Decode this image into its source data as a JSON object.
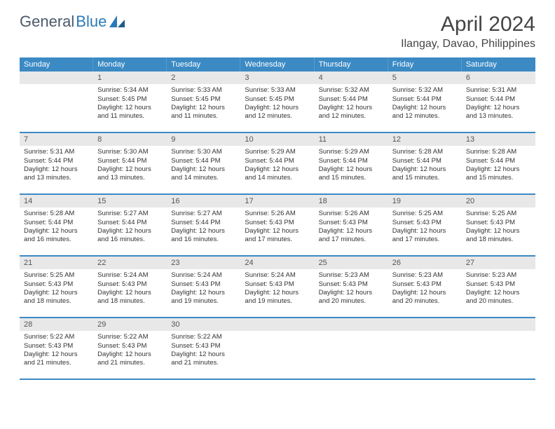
{
  "brand": {
    "name1": "General",
    "name2": "Blue"
  },
  "title": "April 2024",
  "location": "Ilangay, Davao, Philippines",
  "colors": {
    "header_bg": "#3b8ac4",
    "daynum_bg": "#e8e8e8",
    "text": "#333333",
    "brand_gray": "#4a5a6a",
    "brand_blue": "#2a7ab8"
  },
  "weekdays": [
    "Sunday",
    "Monday",
    "Tuesday",
    "Wednesday",
    "Thursday",
    "Friday",
    "Saturday"
  ],
  "weeks": [
    [
      {
        "num": "",
        "sunrise": "",
        "sunset": "",
        "daylight1": "",
        "daylight2": ""
      },
      {
        "num": "1",
        "sunrise": "Sunrise: 5:34 AM",
        "sunset": "Sunset: 5:45 PM",
        "daylight1": "Daylight: 12 hours",
        "daylight2": "and 11 minutes."
      },
      {
        "num": "2",
        "sunrise": "Sunrise: 5:33 AM",
        "sunset": "Sunset: 5:45 PM",
        "daylight1": "Daylight: 12 hours",
        "daylight2": "and 11 minutes."
      },
      {
        "num": "3",
        "sunrise": "Sunrise: 5:33 AM",
        "sunset": "Sunset: 5:45 PM",
        "daylight1": "Daylight: 12 hours",
        "daylight2": "and 12 minutes."
      },
      {
        "num": "4",
        "sunrise": "Sunrise: 5:32 AM",
        "sunset": "Sunset: 5:44 PM",
        "daylight1": "Daylight: 12 hours",
        "daylight2": "and 12 minutes."
      },
      {
        "num": "5",
        "sunrise": "Sunrise: 5:32 AM",
        "sunset": "Sunset: 5:44 PM",
        "daylight1": "Daylight: 12 hours",
        "daylight2": "and 12 minutes."
      },
      {
        "num": "6",
        "sunrise": "Sunrise: 5:31 AM",
        "sunset": "Sunset: 5:44 PM",
        "daylight1": "Daylight: 12 hours",
        "daylight2": "and 13 minutes."
      }
    ],
    [
      {
        "num": "7",
        "sunrise": "Sunrise: 5:31 AM",
        "sunset": "Sunset: 5:44 PM",
        "daylight1": "Daylight: 12 hours",
        "daylight2": "and 13 minutes."
      },
      {
        "num": "8",
        "sunrise": "Sunrise: 5:30 AM",
        "sunset": "Sunset: 5:44 PM",
        "daylight1": "Daylight: 12 hours",
        "daylight2": "and 13 minutes."
      },
      {
        "num": "9",
        "sunrise": "Sunrise: 5:30 AM",
        "sunset": "Sunset: 5:44 PM",
        "daylight1": "Daylight: 12 hours",
        "daylight2": "and 14 minutes."
      },
      {
        "num": "10",
        "sunrise": "Sunrise: 5:29 AM",
        "sunset": "Sunset: 5:44 PM",
        "daylight1": "Daylight: 12 hours",
        "daylight2": "and 14 minutes."
      },
      {
        "num": "11",
        "sunrise": "Sunrise: 5:29 AM",
        "sunset": "Sunset: 5:44 PM",
        "daylight1": "Daylight: 12 hours",
        "daylight2": "and 15 minutes."
      },
      {
        "num": "12",
        "sunrise": "Sunrise: 5:28 AM",
        "sunset": "Sunset: 5:44 PM",
        "daylight1": "Daylight: 12 hours",
        "daylight2": "and 15 minutes."
      },
      {
        "num": "13",
        "sunrise": "Sunrise: 5:28 AM",
        "sunset": "Sunset: 5:44 PM",
        "daylight1": "Daylight: 12 hours",
        "daylight2": "and 15 minutes."
      }
    ],
    [
      {
        "num": "14",
        "sunrise": "Sunrise: 5:28 AM",
        "sunset": "Sunset: 5:44 PM",
        "daylight1": "Daylight: 12 hours",
        "daylight2": "and 16 minutes."
      },
      {
        "num": "15",
        "sunrise": "Sunrise: 5:27 AM",
        "sunset": "Sunset: 5:44 PM",
        "daylight1": "Daylight: 12 hours",
        "daylight2": "and 16 minutes."
      },
      {
        "num": "16",
        "sunrise": "Sunrise: 5:27 AM",
        "sunset": "Sunset: 5:44 PM",
        "daylight1": "Daylight: 12 hours",
        "daylight2": "and 16 minutes."
      },
      {
        "num": "17",
        "sunrise": "Sunrise: 5:26 AM",
        "sunset": "Sunset: 5:43 PM",
        "daylight1": "Daylight: 12 hours",
        "daylight2": "and 17 minutes."
      },
      {
        "num": "18",
        "sunrise": "Sunrise: 5:26 AM",
        "sunset": "Sunset: 5:43 PM",
        "daylight1": "Daylight: 12 hours",
        "daylight2": "and 17 minutes."
      },
      {
        "num": "19",
        "sunrise": "Sunrise: 5:25 AM",
        "sunset": "Sunset: 5:43 PM",
        "daylight1": "Daylight: 12 hours",
        "daylight2": "and 17 minutes."
      },
      {
        "num": "20",
        "sunrise": "Sunrise: 5:25 AM",
        "sunset": "Sunset: 5:43 PM",
        "daylight1": "Daylight: 12 hours",
        "daylight2": "and 18 minutes."
      }
    ],
    [
      {
        "num": "21",
        "sunrise": "Sunrise: 5:25 AM",
        "sunset": "Sunset: 5:43 PM",
        "daylight1": "Daylight: 12 hours",
        "daylight2": "and 18 minutes."
      },
      {
        "num": "22",
        "sunrise": "Sunrise: 5:24 AM",
        "sunset": "Sunset: 5:43 PM",
        "daylight1": "Daylight: 12 hours",
        "daylight2": "and 18 minutes."
      },
      {
        "num": "23",
        "sunrise": "Sunrise: 5:24 AM",
        "sunset": "Sunset: 5:43 PM",
        "daylight1": "Daylight: 12 hours",
        "daylight2": "and 19 minutes."
      },
      {
        "num": "24",
        "sunrise": "Sunrise: 5:24 AM",
        "sunset": "Sunset: 5:43 PM",
        "daylight1": "Daylight: 12 hours",
        "daylight2": "and 19 minutes."
      },
      {
        "num": "25",
        "sunrise": "Sunrise: 5:23 AM",
        "sunset": "Sunset: 5:43 PM",
        "daylight1": "Daylight: 12 hours",
        "daylight2": "and 20 minutes."
      },
      {
        "num": "26",
        "sunrise": "Sunrise: 5:23 AM",
        "sunset": "Sunset: 5:43 PM",
        "daylight1": "Daylight: 12 hours",
        "daylight2": "and 20 minutes."
      },
      {
        "num": "27",
        "sunrise": "Sunrise: 5:23 AM",
        "sunset": "Sunset: 5:43 PM",
        "daylight1": "Daylight: 12 hours",
        "daylight2": "and 20 minutes."
      }
    ],
    [
      {
        "num": "28",
        "sunrise": "Sunrise: 5:22 AM",
        "sunset": "Sunset: 5:43 PM",
        "daylight1": "Daylight: 12 hours",
        "daylight2": "and 21 minutes."
      },
      {
        "num": "29",
        "sunrise": "Sunrise: 5:22 AM",
        "sunset": "Sunset: 5:43 PM",
        "daylight1": "Daylight: 12 hours",
        "daylight2": "and 21 minutes."
      },
      {
        "num": "30",
        "sunrise": "Sunrise: 5:22 AM",
        "sunset": "Sunset: 5:43 PM",
        "daylight1": "Daylight: 12 hours",
        "daylight2": "and 21 minutes."
      },
      {
        "num": "",
        "sunrise": "",
        "sunset": "",
        "daylight1": "",
        "daylight2": ""
      },
      {
        "num": "",
        "sunrise": "",
        "sunset": "",
        "daylight1": "",
        "daylight2": ""
      },
      {
        "num": "",
        "sunrise": "",
        "sunset": "",
        "daylight1": "",
        "daylight2": ""
      },
      {
        "num": "",
        "sunrise": "",
        "sunset": "",
        "daylight1": "",
        "daylight2": ""
      }
    ]
  ]
}
